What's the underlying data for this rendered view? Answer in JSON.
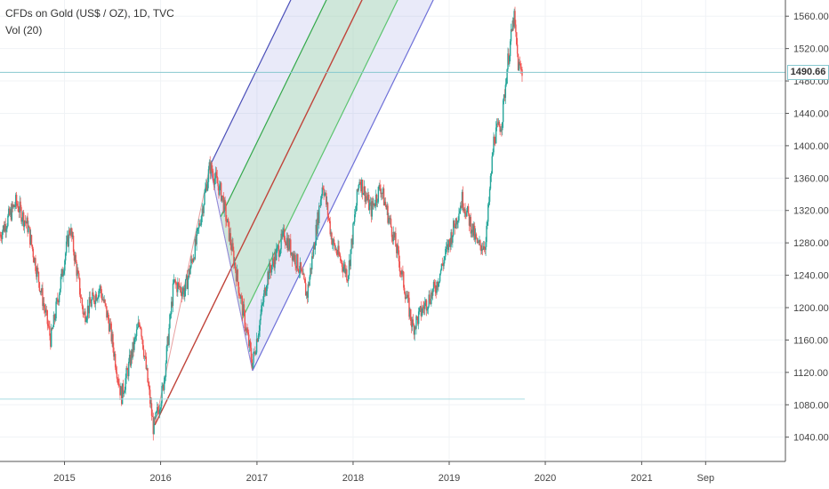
{
  "legend": {
    "title": "CFDs on Gold (US$ / OZ), 1D, TVC",
    "volume": "Vol (20)"
  },
  "last_price": {
    "label": "1490.66",
    "value": 1490.66,
    "line_color": "#87c8cf"
  },
  "support_line": {
    "value": 1087
  },
  "chart_data": {
    "type": "line",
    "y_axis": {
      "range": [
        1010,
        1580
      ],
      "ticks": [
        "1040.00",
        "1080.00",
        "1120.00",
        "1160.00",
        "1200.00",
        "1240.00",
        "1280.00",
        "1320.00",
        "1360.00",
        "1400.00",
        "1440.00",
        "1480.00",
        "1520.00",
        "1560.00"
      ]
    },
    "x_axis": {
      "range": [
        "2014-05-01",
        "2022-07-01"
      ],
      "ticks": [
        {
          "label": "2015",
          "date": "2015-01-01"
        },
        {
          "label": "2016",
          "date": "2016-01-01"
        },
        {
          "label": "2017",
          "date": "2017-01-01"
        },
        {
          "label": "2018",
          "date": "2018-01-01"
        },
        {
          "label": "2019",
          "date": "2019-01-01"
        },
        {
          "label": "2020",
          "date": "2020-01-01"
        },
        {
          "label": "2021",
          "date": "2021-01-01"
        },
        {
          "label": "Sep",
          "date": "2021-09-01"
        }
      ]
    },
    "price_series": {
      "dates": [
        "2014-05-01",
        "2014-07-01",
        "2014-08-15",
        "2014-10-01",
        "2014-11-10",
        "2015-01-22",
        "2015-03-15",
        "2015-05-15",
        "2015-06-20",
        "2015-08-05",
        "2015-10-15",
        "2015-12-05",
        "2016-01-10",
        "2016-02-20",
        "2016-04-01",
        "2016-05-15",
        "2016-07-06",
        "2016-08-20",
        "2016-10-05",
        "2016-11-20",
        "2016-12-15",
        "2017-02-10",
        "2017-04-15",
        "2017-06-10",
        "2017-07-10",
        "2017-09-08",
        "2017-10-15",
        "2017-12-12",
        "2018-01-25",
        "2018-03-10",
        "2018-04-15",
        "2018-06-10",
        "2018-08-16",
        "2018-09-25",
        "2018-11-10",
        "2019-01-10",
        "2019-02-20",
        "2019-04-20",
        "2019-05-20",
        "2019-06-20",
        "2019-07-20",
        "2019-08-10",
        "2019-09-04",
        "2019-09-20",
        "2019-10-05"
      ],
      "values": [
        1290,
        1330,
        1300,
        1225,
        1160,
        1300,
        1190,
        1225,
        1180,
        1090,
        1185,
        1050,
        1100,
        1230,
        1220,
        1280,
        1375,
        1340,
        1260,
        1175,
        1130,
        1240,
        1290,
        1250,
        1215,
        1355,
        1280,
        1240,
        1360,
        1320,
        1350,
        1280,
        1175,
        1200,
        1225,
        1290,
        1335,
        1275,
        1280,
        1410,
        1430,
        1500,
        1560,
        1500,
        1490
      ]
    },
    "pitchfork": {
      "pivot_a": {
        "date": "2015-12-10",
        "value": 1055
      },
      "pivot_b": {
        "date": "2016-07-06",
        "value": 1375
      },
      "pivot_c": {
        "date": "2016-12-15",
        "value": 1122
      }
    },
    "grid": true
  }
}
